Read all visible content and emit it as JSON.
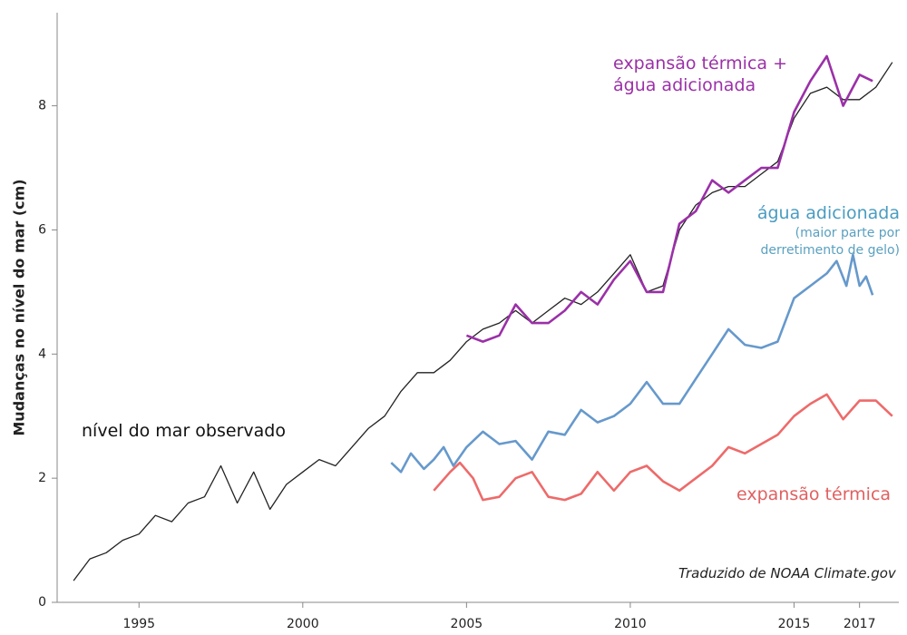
{
  "chart_data": {
    "type": "line",
    "ylabel": "Mudanças no nível do mar (cm)",
    "source": "Traduzido de NOAA Climate.gov",
    "xlim": [
      1992.5,
      2018.2
    ],
    "xticks": [
      1995,
      2000,
      2005,
      2010,
      2015,
      2017
    ],
    "ylim": [
      0,
      9.5
    ],
    "yticks": [
      0,
      2,
      4,
      6,
      8
    ],
    "series": [
      {
        "name": "nível do mar observado",
        "color": "#222222",
        "x": [
          1993.0,
          1993.5,
          1994.0,
          1994.5,
          1995.0,
          1995.5,
          1996.0,
          1996.5,
          1997.0,
          1997.5,
          1998.0,
          1998.5,
          1999.0,
          1999.5,
          2000.0,
          2000.5,
          2001.0,
          2001.5,
          2002.0,
          2002.5,
          2003.0,
          2003.5,
          2004.0,
          2004.5,
          2005.0,
          2005.5,
          2006.0,
          2006.5,
          2007.0,
          2007.5,
          2008.0,
          2008.5,
          2009.0,
          2009.5,
          2010.0,
          2010.5,
          2011.0,
          2011.5,
          2012.0,
          2012.5,
          2013.0,
          2013.5,
          2014.0,
          2014.5,
          2015.0,
          2015.5,
          2016.0,
          2016.5,
          2017.0,
          2017.5,
          2018.0
        ],
        "values": [
          0.35,
          0.7,
          0.8,
          1.0,
          1.1,
          1.4,
          1.3,
          1.6,
          1.7,
          2.2,
          1.6,
          2.1,
          1.5,
          1.9,
          2.1,
          2.3,
          2.2,
          2.5,
          2.8,
          3.0,
          3.4,
          3.7,
          3.7,
          3.9,
          4.2,
          4.4,
          4.5,
          4.7,
          4.5,
          4.7,
          4.9,
          4.8,
          5.0,
          5.3,
          5.6,
          5.0,
          5.1,
          6.0,
          6.4,
          6.6,
          6.7,
          6.7,
          6.9,
          7.1,
          7.8,
          8.2,
          8.3,
          8.1,
          8.1,
          8.3,
          8.7
        ]
      },
      {
        "name": "expansão térmica + água adicionada",
        "color": "#9b30a8",
        "x": [
          2005.0,
          2005.5,
          2006.0,
          2006.5,
          2007.0,
          2007.5,
          2008.0,
          2008.5,
          2009.0,
          2009.5,
          2010.0,
          2010.5,
          2011.0,
          2011.5,
          2012.0,
          2012.5,
          2013.0,
          2013.5,
          2014.0,
          2014.5,
          2015.0,
          2015.5,
          2016.0,
          2016.5,
          2017.0,
          2017.4
        ],
        "values": [
          4.3,
          4.2,
          4.3,
          4.8,
          4.5,
          4.5,
          4.7,
          5.0,
          4.8,
          5.2,
          5.5,
          5.0,
          5.0,
          6.1,
          6.3,
          6.8,
          6.6,
          6.8,
          7.0,
          7.0,
          7.9,
          8.4,
          8.8,
          8.0,
          8.5,
          8.4
        ]
      },
      {
        "name": "água adicionada",
        "note": "(maior parte por derretimento de gelo)",
        "color": "#6699cc",
        "x": [
          2002.7,
          2003.0,
          2003.3,
          2003.7,
          2004.0,
          2004.3,
          2004.6,
          2005.0,
          2005.5,
          2006.0,
          2006.5,
          2007.0,
          2007.5,
          2008.0,
          2008.5,
          2009.0,
          2009.5,
          2010.0,
          2010.5,
          2011.0,
          2011.5,
          2012.0,
          2012.5,
          2013.0,
          2013.5,
          2014.0,
          2014.5,
          2015.0,
          2015.5,
          2016.0,
          2016.3,
          2016.6,
          2016.8,
          2017.0,
          2017.2,
          2017.4
        ],
        "values": [
          2.25,
          2.1,
          2.4,
          2.15,
          2.3,
          2.5,
          2.2,
          2.5,
          2.75,
          2.55,
          2.6,
          2.3,
          2.75,
          2.7,
          3.1,
          2.9,
          3.0,
          3.2,
          3.55,
          3.2,
          3.2,
          3.6,
          4.0,
          4.4,
          4.15,
          4.1,
          4.2,
          4.9,
          5.1,
          5.3,
          5.5,
          5.1,
          5.6,
          5.1,
          5.25,
          4.95
        ]
      },
      {
        "name": "expansão térmica",
        "color": "#ee6a6a",
        "x": [
          2004.0,
          2004.5,
          2004.8,
          2005.2,
          2005.5,
          2006.0,
          2006.5,
          2007.0,
          2007.5,
          2008.0,
          2008.5,
          2009.0,
          2009.5,
          2010.0,
          2010.5,
          2011.0,
          2011.5,
          2012.0,
          2012.5,
          2013.0,
          2013.5,
          2014.0,
          2014.5,
          2015.0,
          2015.5,
          2016.0,
          2016.5,
          2017.0,
          2017.5,
          2018.0
        ],
        "values": [
          1.8,
          2.1,
          2.25,
          2.0,
          1.65,
          1.7,
          2.0,
          2.1,
          1.7,
          1.65,
          1.75,
          2.1,
          1.8,
          2.1,
          2.2,
          1.95,
          1.8,
          2.0,
          2.2,
          2.5,
          2.4,
          2.55,
          2.7,
          3.0,
          3.2,
          3.35,
          2.95,
          3.25,
          3.25,
          3.0
        ]
      }
    ]
  }
}
